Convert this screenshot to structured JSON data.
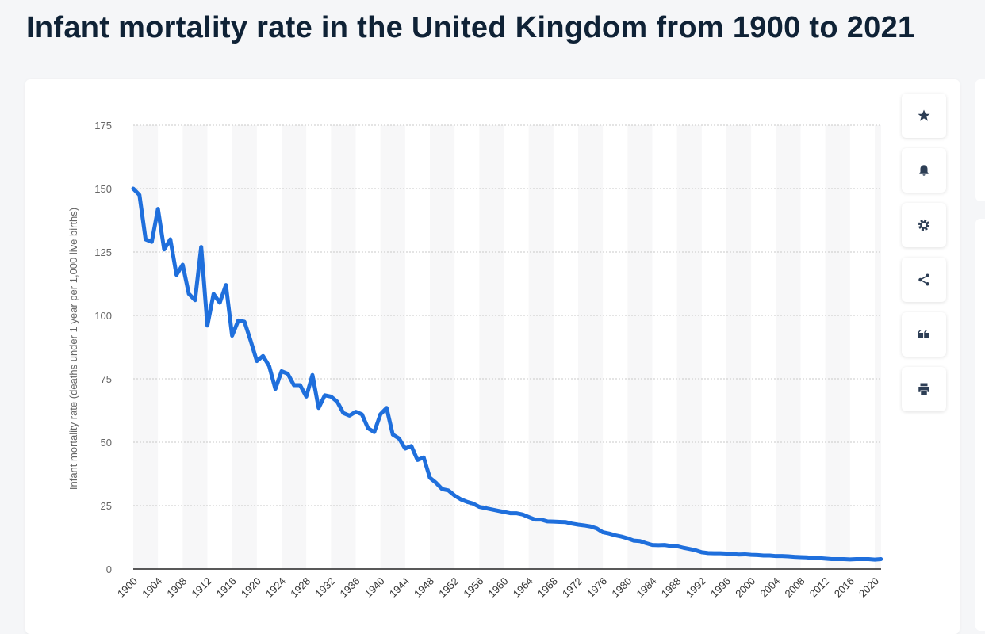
{
  "page_title": "Infant mortality rate in the United Kingdom from 1900 to 2021",
  "toolbar": [
    "star-icon",
    "bell-icon",
    "gear-icon",
    "share-icon",
    "quote-icon",
    "print-icon"
  ],
  "chart_data": {
    "type": "line",
    "title": "",
    "xlabel": "",
    "ylabel": "Infant mortality rate (deaths under 1 year per 1,000 live births)",
    "ylim": [
      0,
      175
    ],
    "yticks": [
      0,
      25,
      50,
      75,
      100,
      125,
      150,
      175
    ],
    "xlim": [
      1900,
      2021
    ],
    "xticks": [
      1900,
      1904,
      1908,
      1912,
      1916,
      1920,
      1924,
      1928,
      1932,
      1936,
      1940,
      1944,
      1948,
      1952,
      1956,
      1960,
      1964,
      1968,
      1972,
      1976,
      1980,
      1984,
      1988,
      1992,
      1996,
      2000,
      2004,
      2008,
      2012,
      2016,
      2020
    ],
    "grid": true,
    "color": "#1f6fdc",
    "x": [
      1900,
      1901,
      1902,
      1903,
      1904,
      1905,
      1906,
      1907,
      1908,
      1909,
      1910,
      1911,
      1912,
      1913,
      1914,
      1915,
      1916,
      1917,
      1918,
      1919,
      1920,
      1921,
      1922,
      1923,
      1924,
      1925,
      1926,
      1927,
      1928,
      1929,
      1930,
      1931,
      1932,
      1933,
      1934,
      1935,
      1936,
      1937,
      1938,
      1939,
      1940,
      1941,
      1942,
      1943,
      1944,
      1945,
      1946,
      1947,
      1948,
      1949,
      1950,
      1951,
      1952,
      1953,
      1954,
      1955,
      1956,
      1957,
      1958,
      1959,
      1960,
      1961,
      1962,
      1963,
      1964,
      1965,
      1966,
      1967,
      1968,
      1969,
      1970,
      1971,
      1972,
      1973,
      1974,
      1975,
      1976,
      1977,
      1978,
      1979,
      1980,
      1981,
      1982,
      1983,
      1984,
      1985,
      1986,
      1987,
      1988,
      1989,
      1990,
      1991,
      1992,
      1993,
      1994,
      1995,
      1996,
      1997,
      1998,
      1999,
      2000,
      2001,
      2002,
      2003,
      2004,
      2005,
      2006,
      2007,
      2008,
      2009,
      2010,
      2011,
      2012,
      2013,
      2014,
      2015,
      2016,
      2017,
      2018,
      2019,
      2020,
      2021
    ],
    "values": [
      150,
      147.5,
      130,
      129,
      142,
      126,
      130,
      116,
      120,
      108.5,
      106,
      127,
      96,
      108.5,
      105,
      112,
      92,
      98,
      97.5,
      90,
      82,
      84,
      80,
      71,
      78,
      77,
      72.5,
      72.5,
      68,
      76.5,
      63.5,
      68.5,
      68,
      66,
      61.5,
      60.5,
      62,
      61,
      55.5,
      54,
      61,
      63.5,
      53,
      51.5,
      47.5,
      48.5,
      43,
      44,
      36,
      34,
      31.5,
      31,
      29,
      27.5,
      26.5,
      25.8,
      24.5,
      24,
      23.5,
      23,
      22.5,
      22,
      22,
      21.5,
      20.5,
      19.5,
      19.5,
      18.8,
      18.7,
      18.6,
      18.5,
      17.9,
      17.5,
      17.2,
      16.8,
      16,
      14.5,
      14,
      13.3,
      12.8,
      12.1,
      11.2,
      11,
      10.2,
      9.5,
      9.4,
      9.5,
      9.1,
      9,
      8.4,
      7.9,
      7.4,
      6.6,
      6.3,
      6.2,
      6.2,
      6.1,
      5.9,
      5.7,
      5.8,
      5.6,
      5.5,
      5.3,
      5.3,
      5.1,
      5.1,
      5,
      4.8,
      4.7,
      4.6,
      4.3,
      4.3,
      4.1,
      3.9,
      3.9,
      3.9,
      3.8,
      3.9,
      3.9,
      3.9,
      3.7,
      3.9
    ]
  }
}
